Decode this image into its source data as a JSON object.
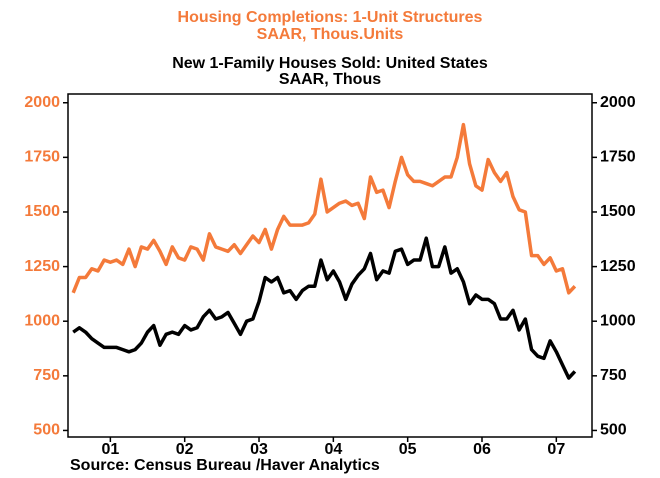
{
  "chart_data": {
    "type": "line",
    "title": "Housing Completions: 1-Unit Structures",
    "subtitle": "SAAR, Thous.Units",
    "title2": "New 1-Family Houses Sold: United States",
    "subtitle2": "SAAR, Thous",
    "source": "Source:  Census Bureau /Haver Analytics",
    "x": [
      2001,
      2001.083,
      2001.167,
      2001.25,
      2001.333,
      2001.417,
      2001.5,
      2001.583,
      2001.667,
      2001.75,
      2001.833,
      2001.917,
      2002,
      2002.083,
      2002.167,
      2002.25,
      2002.333,
      2002.417,
      2002.5,
      2002.583,
      2002.667,
      2002.75,
      2002.833,
      2002.917,
      2003,
      2003.083,
      2003.167,
      2003.25,
      2003.333,
      2003.417,
      2003.5,
      2003.583,
      2003.667,
      2003.75,
      2003.833,
      2003.917,
      2004,
      2004.083,
      2004.167,
      2004.25,
      2004.333,
      2004.417,
      2004.5,
      2004.583,
      2004.667,
      2004.75,
      2004.833,
      2004.917,
      2005,
      2005.083,
      2005.167,
      2005.25,
      2005.333,
      2005.417,
      2005.5,
      2005.583,
      2005.667,
      2005.75,
      2005.833,
      2005.917,
      2006,
      2006.083,
      2006.167,
      2006.25,
      2006.333,
      2006.417,
      2006.5,
      2006.583,
      2006.667,
      2006.75,
      2006.833,
      2006.917,
      2007,
      2007.083,
      2007.167,
      2007.25,
      2007.333,
      2007.417,
      2007.5,
      2007.583,
      2007.667,
      2007.75
    ],
    "series": [
      {
        "name": "Housing Completions: 1-Unit Structures",
        "color": "#f47a3a",
        "axis": "y",
        "values": [
          1130,
          1200,
          1200,
          1240,
          1230,
          1280,
          1270,
          1280,
          1260,
          1330,
          1250,
          1340,
          1330,
          1370,
          1320,
          1260,
          1340,
          1290,
          1280,
          1340,
          1330,
          1280,
          1400,
          1340,
          1330,
          1320,
          1350,
          1310,
          1350,
          1390,
          1360,
          1420,
          1330,
          1420,
          1480,
          1440,
          1440,
          1440,
          1450,
          1490,
          1650,
          1500,
          1520,
          1540,
          1550,
          1530,
          1540,
          1470,
          1660,
          1590,
          1600,
          1520,
          1640,
          1750,
          1670,
          1640,
          1640,
          1630,
          1620,
          1640,
          1660,
          1660,
          1750,
          1900,
          1720,
          1620,
          1600,
          1740,
          1680,
          1640,
          1680,
          1570,
          1510,
          1500,
          1300,
          1300,
          1260,
          1290,
          1230,
          1240,
          1130,
          1160
        ]
      },
      {
        "name": "New 1-Family Houses Sold: United States",
        "color": "#000000",
        "axis": "y2",
        "values": [
          950,
          970,
          950,
          920,
          900,
          880,
          880,
          880,
          870,
          860,
          870,
          900,
          950,
          980,
          890,
          940,
          950,
          940,
          980,
          960,
          970,
          1020,
          1050,
          1010,
          1020,
          1040,
          990,
          940,
          1000,
          1010,
          1090,
          1200,
          1180,
          1200,
          1130,
          1140,
          1100,
          1140,
          1160,
          1160,
          1280,
          1190,
          1230,
          1180,
          1100,
          1170,
          1210,
          1240,
          1310,
          1190,
          1230,
          1220,
          1320,
          1330,
          1260,
          1280,
          1280,
          1380,
          1250,
          1250,
          1340,
          1220,
          1240,
          1180,
          1080,
          1120,
          1100,
          1100,
          1080,
          1010,
          1010,
          1050,
          960,
          1010,
          870,
          840,
          830,
          910,
          860,
          800,
          740,
          770
        ]
      }
    ],
    "xlim": [
      2000.93,
      2007.98
    ],
    "xticks": [
      {
        "value": 2001.5,
        "label": "01"
      },
      {
        "value": 2002.5,
        "label": "02"
      },
      {
        "value": 2003.5,
        "label": "03"
      },
      {
        "value": 2004.5,
        "label": "04"
      },
      {
        "value": 2005.5,
        "label": "05"
      },
      {
        "value": 2006.5,
        "label": "06"
      },
      {
        "value": 2007.5,
        "label": "07"
      }
    ],
    "ylim": [
      470,
      2040
    ],
    "yticks": [
      500,
      750,
      1000,
      1250,
      1500,
      1750,
      2000
    ],
    "y2lim": [
      470,
      2040
    ],
    "y2ticks": [
      500,
      750,
      1000,
      1250,
      1500,
      1750,
      2000
    ],
    "y_color": "#f47a3a",
    "y2_color": "#000000"
  }
}
